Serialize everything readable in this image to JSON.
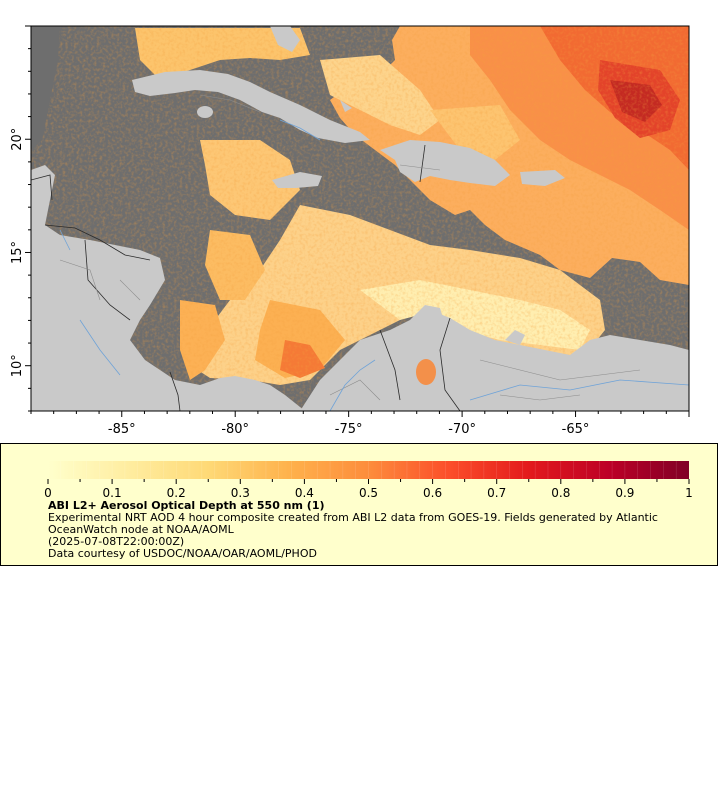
{
  "map": {
    "x_ticks": [
      {
        "lon": -85,
        "label": "-85°"
      },
      {
        "lon": -80,
        "label": "-80°"
      },
      {
        "lon": -75,
        "label": "-75°"
      },
      {
        "lon": -70,
        "label": "-70°"
      },
      {
        "lon": -65,
        "label": "-65°"
      }
    ],
    "y_ticks": [
      {
        "lat": 20,
        "label": "20°"
      },
      {
        "lat": 15,
        "label": "15°"
      },
      {
        "lat": 10,
        "label": "10°"
      }
    ],
    "lon_range": [
      -89,
      -60
    ],
    "lat_range": [
      8,
      25
    ],
    "colors": {
      "land": "#c9c9c9",
      "no_data": "#6e6e6e",
      "borders": "#2a2a2a",
      "rivers": "#6fa3d8"
    }
  },
  "legend": {
    "colorbar_ticks": [
      "0",
      "0.1",
      "0.2",
      "0.3",
      "0.4",
      "0.5",
      "0.6",
      "0.7",
      "0.8",
      "0.9",
      "1"
    ],
    "colorbar_range": [
      0,
      1
    ],
    "colorbar_colors": [
      "#ffffcc",
      "#ffeda0",
      "#fed976",
      "#feb24c",
      "#fd8d3c",
      "#fc4e2a",
      "#e31a1c",
      "#bd0026",
      "#800026"
    ],
    "title": "ABI L2+ Aerosol Optical Depth at 550 nm (1)",
    "description": "Experimental NRT AOD 4 hour composite created from ABI L2 data from GOES-19. Fields generated by Atlantic OceanWatch node at NOAA/AOML",
    "date": "(2025-07-08T22:00:00Z)",
    "credit": "Data courtesy of USDOC/NOAA/OAR/AOML/PHOD"
  }
}
